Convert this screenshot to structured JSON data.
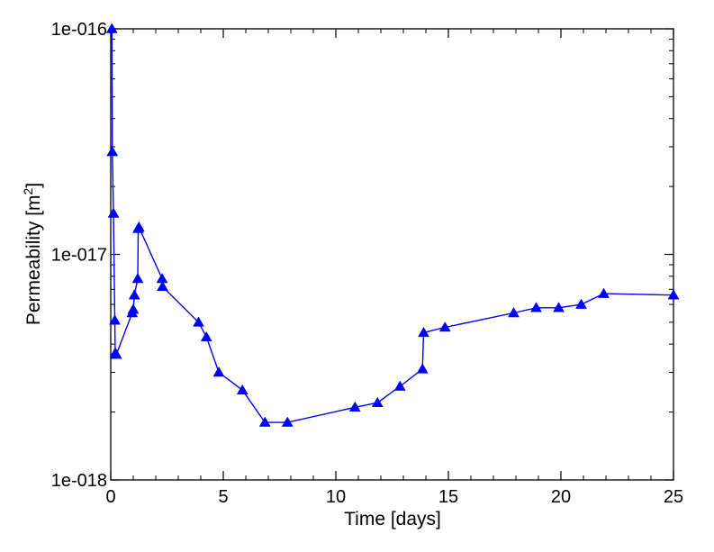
{
  "chart_data": {
    "type": "line",
    "xlabel": "Time [days]",
    "ylabel": "Permeability [m",
    "ylabel_superscript": "2",
    "ylabel_suffix": "]",
    "xlim": [
      0,
      25
    ],
    "ylim": [
      1e-18,
      1e-16
    ],
    "yscale": "log",
    "grid": false,
    "legend": "none",
    "x_ticks": [
      0,
      5,
      10,
      15,
      20,
      25
    ],
    "x_tick_labels": [
      "0",
      "5",
      "10",
      "15",
      "20",
      "25"
    ],
    "y_ticks": [
      1e-18,
      1e-17,
      1e-16
    ],
    "y_tick_labels": [
      "1e-018",
      "1e-017",
      "1e-016"
    ],
    "series": [
      {
        "color": "#0000ff",
        "marker": "triangle",
        "x": [
          0.05,
          0.07,
          0.12,
          0.18,
          0.2,
          0.25,
          0.95,
          1.0,
          1.05,
          1.2,
          1.22,
          1.25,
          2.28,
          2.3,
          3.9,
          4.25,
          4.8,
          5.85,
          6.85,
          7.85,
          10.85,
          11.85,
          12.85,
          13.85,
          13.9,
          14.85,
          17.9,
          18.9,
          19.9,
          20.9,
          21.9,
          25.0
        ],
        "y": [
          1e-16,
          2.85e-17,
          1.52e-17,
          5.1e-18,
          3.65e-18,
          3.6e-18,
          5.5e-18,
          5.7e-18,
          6.6e-18,
          7.8e-18,
          1.3e-17,
          1.32e-17,
          7.8e-18,
          7.2e-18,
          5e-18,
          4.3e-18,
          3e-18,
          2.5e-18,
          1.8e-18,
          1.8e-18,
          2.1e-18,
          2.2e-18,
          2.6e-18,
          3.1e-18,
          4.5e-18,
          4.75e-18,
          5.5e-18,
          5.8e-18,
          5.8e-18,
          6e-18,
          6.7e-18,
          6.6e-18
        ]
      }
    ]
  }
}
